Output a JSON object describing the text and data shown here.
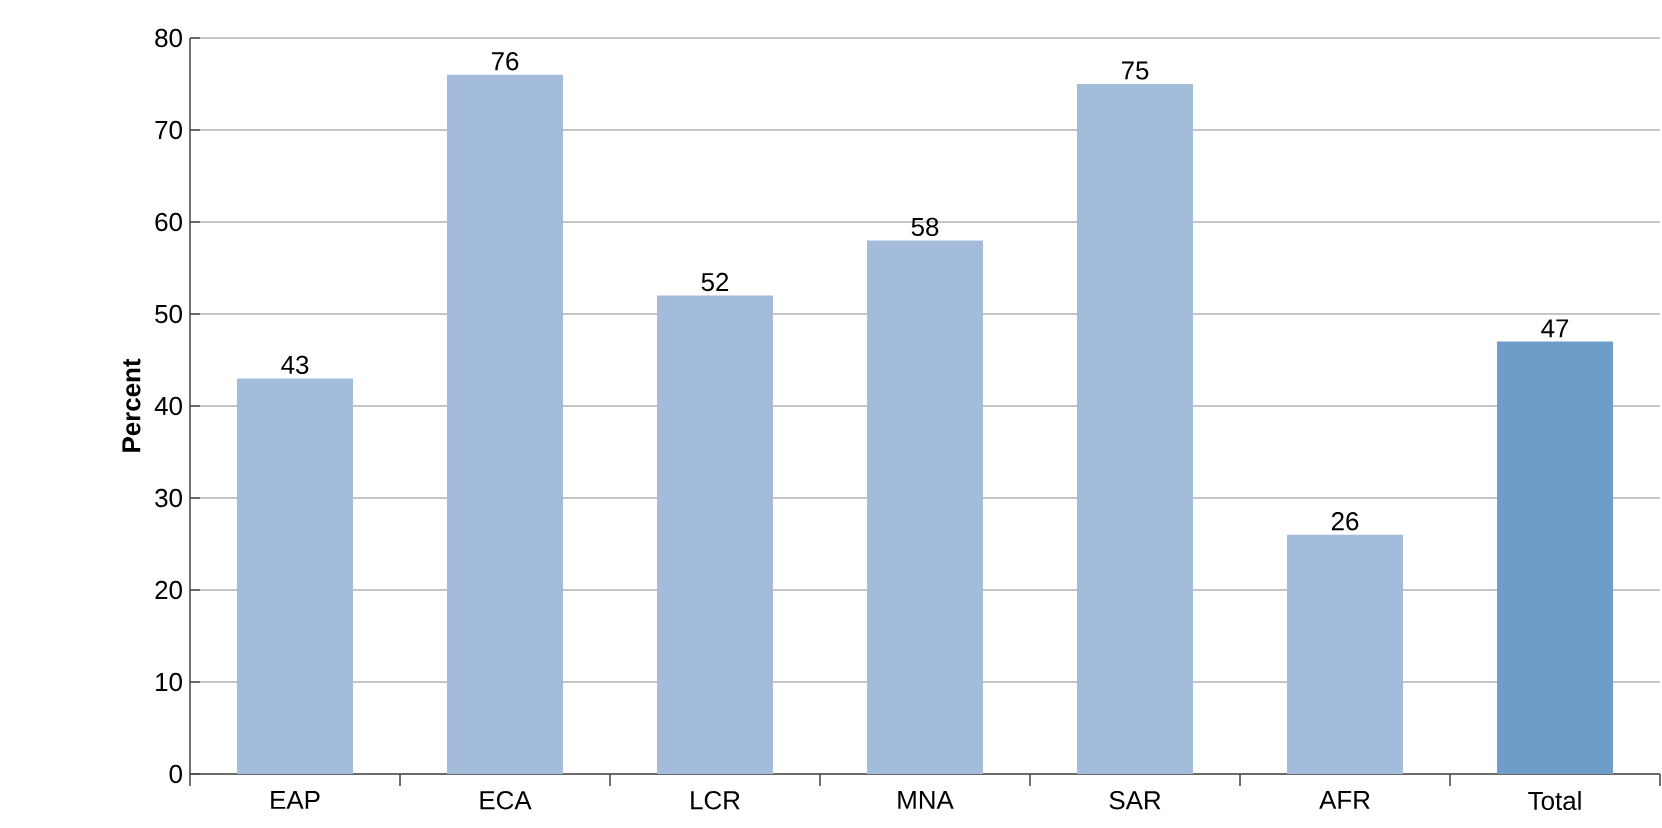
{
  "chart_data": {
    "type": "bar",
    "ylabel": "Percent",
    "categories": [
      "EAP",
      "ECA",
      "LCR",
      "MNA",
      "SAR",
      "AFR",
      "Total"
    ],
    "values": [
      43,
      76,
      52,
      58,
      75,
      26,
      47
    ],
    "colors": [
      "#a3bcdc",
      "#a3bcdc",
      "#a3bcdc",
      "#a3bcdc",
      "#a3bcdc",
      "#a3bcdc",
      "#6f9dc9"
    ],
    "ylim": [
      0,
      80
    ],
    "yticks": [
      0,
      10,
      20,
      30,
      40,
      50,
      60,
      70,
      80
    ],
    "grid": "y",
    "data_labels": true
  }
}
